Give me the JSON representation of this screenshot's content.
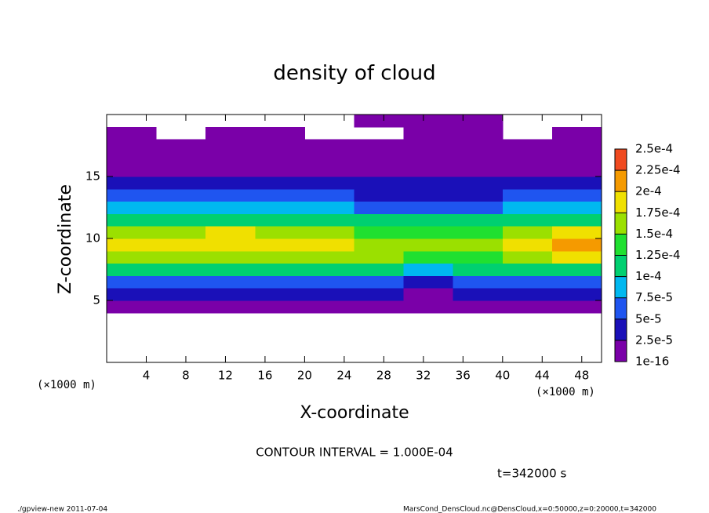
{
  "chart_data": {
    "type": "heatmap",
    "title": "density of cloud",
    "x_label": "X-coordinate",
    "y_label": "Z-coordinate",
    "x_unit_left": "(×1000 m)",
    "x_unit_right": "(×1000 m)",
    "contour_note": "CONTOUR INTERVAL = 1.000E-04",
    "time_note": "t=342000 s",
    "footer_left": "./gpview-new   2011-07-04",
    "footer_right": "MarsCond_DensCloud.nc@DensCloud,x=0:50000,z=0:20000,t=342000",
    "xlim": [
      0,
      50
    ],
    "ylim": [
      0,
      20
    ],
    "xticks": [
      4,
      8,
      12,
      16,
      20,
      24,
      28,
      32,
      36,
      40,
      44,
      48
    ],
    "yticks": [
      5,
      10,
      15
    ],
    "x_edges": [
      0,
      5,
      10,
      15,
      20,
      25,
      30,
      35,
      40,
      45,
      50
    ],
    "z_edges": [
      0,
      1,
      2,
      3,
      4,
      5,
      6,
      7,
      8,
      9,
      10,
      11,
      12,
      13,
      14,
      15,
      16,
      17,
      18,
      19,
      20
    ],
    "z": [
      [
        null,
        null,
        null,
        null,
        null,
        null,
        null,
        null,
        null,
        null
      ],
      [
        null,
        null,
        null,
        null,
        null,
        null,
        null,
        null,
        null,
        null
      ],
      [
        null,
        null,
        null,
        null,
        null,
        null,
        null,
        null,
        null,
        null
      ],
      [
        null,
        null,
        null,
        null,
        null,
        null,
        null,
        null,
        null,
        null
      ],
      [
        5e-06,
        5e-06,
        5e-06,
        5e-06,
        5e-06,
        5e-06,
        5e-06,
        5e-06,
        5e-06,
        5e-06
      ],
      [
        3e-05,
        3e-05,
        3.5e-05,
        3e-05,
        3e-05,
        3e-05,
        2e-05,
        3e-05,
        3e-05,
        3e-05
      ],
      [
        6e-05,
        6.5e-05,
        6e-05,
        6e-05,
        6e-05,
        6e-05,
        4e-05,
        5.5e-05,
        6e-05,
        6e-05
      ],
      [
        0.000105,
        0.00011,
        0.00011,
        0.000105,
        0.000105,
        0.0001,
        8e-05,
        0.000105,
        0.00011,
        0.00011
      ],
      [
        0.000155,
        0.00016,
        0.00017,
        0.00016,
        0.000155,
        0.00015,
        0.00013,
        0.000145,
        0.00017,
        0.00018
      ],
      [
        0.00018,
        0.000185,
        0.000195,
        0.00018,
        0.000175,
        0.00016,
        0.00015,
        0.00016,
        0.000195,
        0.000205
      ],
      [
        0.00015,
        0.00016,
        0.000175,
        0.00016,
        0.000155,
        0.000145,
        0.00014,
        0.00014,
        0.00017,
        0.00018
      ],
      [
        0.00011,
        0.000115,
        0.00012,
        0.000115,
        0.00011,
        0.000105,
        0.000105,
        0.0001,
        0.000115,
        0.00012
      ],
      [
        7.5e-05,
        8e-05,
        8e-05,
        7.5e-05,
        7.5e-05,
        7e-05,
        7e-05,
        7e-05,
        7.5e-05,
        8e-05
      ],
      [
        5.5e-05,
        5.5e-05,
        5e-05,
        5e-05,
        5e-05,
        4.5e-05,
        4.5e-05,
        4.5e-05,
        5e-05,
        5e-05
      ],
      [
        3.5e-05,
        3.5e-05,
        3e-05,
        3e-05,
        3e-05,
        2.5e-05,
        2.5e-05,
        3e-05,
        3e-05,
        3e-05
      ],
      [
        2e-05,
        2e-05,
        1.5e-05,
        1.5e-05,
        1.5e-05,
        1.2e-05,
        1.2e-05,
        1.5e-05,
        2e-05,
        2e-05
      ],
      [
        1e-05,
        1e-05,
        1e-05,
        1e-05,
        1e-05,
        1e-05,
        1e-05,
        1e-05,
        1e-05,
        1e-05
      ],
      [
        5e-06,
        5e-06,
        5e-06,
        5e-06,
        5e-06,
        5e-06,
        5e-06,
        5e-06,
        5e-06,
        5e-06
      ],
      [
        3e-06,
        null,
        3e-06,
        3e-06,
        null,
        null,
        3e-06,
        3e-06,
        null,
        3e-06
      ],
      [
        null,
        null,
        null,
        null,
        null,
        2e-06,
        2e-06,
        2e-06,
        null,
        null
      ]
    ],
    "colorbar": {
      "ticks": [
        {
          "value": 1e-16,
          "label": "1e-16"
        },
        {
          "value": 2.5e-05,
          "label": "2.5e-5"
        },
        {
          "value": 5e-05,
          "label": "5e-5"
        },
        {
          "value": 7.5e-05,
          "label": "7.5e-5"
        },
        {
          "value": 0.0001,
          "label": "1e-4"
        },
        {
          "value": 0.000125,
          "label": "1.25e-4"
        },
        {
          "value": 0.00015,
          "label": "1.5e-4"
        },
        {
          "value": 0.000175,
          "label": "1.75e-4"
        },
        {
          "value": 0.0002,
          "label": "2e-4"
        },
        {
          "value": 0.000225,
          "label": "2.25e-4"
        },
        {
          "value": 0.00025,
          "label": "2.5e-4"
        }
      ],
      "colors": [
        "#7a00a8",
        "#1a10b8",
        "#1f55f0",
        "#00b8f0",
        "#00d070",
        "#20e030",
        "#9be000",
        "#f0e000",
        "#f59a00",
        "#f04a20"
      ]
    }
  }
}
